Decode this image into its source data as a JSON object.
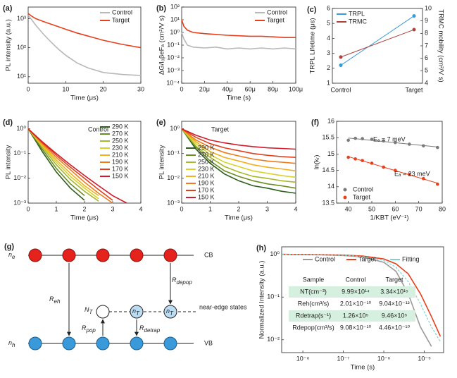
{
  "chart_data": [
    {
      "panel": "(a)",
      "type": "line",
      "xlabel": "Time (μs)",
      "ylabel": "PL intensity (a.u.)",
      "yscale": "log",
      "legend": "upper right",
      "xlim": [
        0,
        30
      ],
      "xticks": [
        0,
        10,
        20,
        30
      ],
      "ylim": [
        6,
        2500
      ],
      "yticks": [
        {
          "value": 10,
          "label": "10¹"
        },
        {
          "value": 100,
          "label": "10²"
        },
        {
          "value": 1000,
          "label": "10³"
        }
      ],
      "x": [
        0,
        1,
        2,
        4,
        6,
        8,
        10,
        13,
        16,
        20,
        25,
        30
      ],
      "series": [
        {
          "name": "Control",
          "color": "#b8b8b8",
          "values": [
            1300,
            900,
            600,
            300,
            160,
            90,
            55,
            30,
            20,
            14,
            12,
            11
          ]
        },
        {
          "name": "Target",
          "color": "#e8401c",
          "values": [
            1500,
            1200,
            1000,
            800,
            650,
            530,
            430,
            320,
            250,
            180,
            130,
            100
          ]
        }
      ]
    },
    {
      "panel": "(b)",
      "type": "line",
      "xlabel": "Time (s)",
      "ylabel": "ΔG/I₀βeFₐ (cm²/V s)",
      "yscale": "log",
      "legend": "upper right",
      "xlim": [
        0,
        0.0001
      ],
      "xticks": [
        0,
        {
          "value": 2e-05,
          "label": "20μ"
        },
        {
          "value": 4e-05,
          "label": "40μ"
        },
        {
          "value": 6e-05,
          "label": "60μ"
        },
        {
          "value": 8e-05,
          "label": "80μ"
        },
        {
          "value": 0.0001,
          "label": "100μ"
        }
      ],
      "ylim": [
        0.0001,
        100
      ],
      "yticks": [
        {
          "value": 0.0001,
          "label": "10⁻⁴"
        },
        {
          "value": 0.001,
          "label": "10⁻³"
        },
        {
          "value": 0.01,
          "label": "10⁻²"
        },
        {
          "value": 0.1,
          "label": "10⁻¹"
        },
        {
          "value": 1,
          "label": "10⁰"
        },
        {
          "value": 10,
          "label": "10¹"
        },
        {
          "value": 100,
          "label": "10²"
        }
      ],
      "x": [
        0,
        2e-06,
        5e-06,
        1e-05,
        2e-05,
        3e-05,
        4e-05,
        5e-05,
        6e-05,
        7e-05,
        8e-05,
        9e-05,
        0.0001
      ],
      "series": [
        {
          "name": "Control",
          "color": "#b8b8b8",
          "values": [
            1,
            0.3,
            0.1,
            0.07,
            0.06,
            0.07,
            0.05,
            0.06,
            0.05,
            0.06,
            0.05,
            0.06,
            0.05
          ]
        },
        {
          "name": "Target",
          "color": "#e8401c",
          "values": [
            10,
            3,
            1.5,
            1,
            0.8,
            0.7,
            0.6,
            0.55,
            0.5,
            0.5,
            0.45,
            0.4,
            0.4
          ]
        }
      ]
    },
    {
      "panel": "(c)",
      "type": "dual",
      "ylabel": "TRPL Lifetime (μs)",
      "y2label": "TRMC mobility (cm²/V s)",
      "legend": "upper left",
      "categories": [
        "Control",
        "Target"
      ],
      "ylim": [
        1,
        6
      ],
      "yticks": [
        1,
        2,
        3,
        4,
        5,
        6
      ],
      "y2lim": [
        4,
        10
      ],
      "y2ticks": [
        4,
        5,
        6,
        7,
        8,
        9,
        10
      ],
      "series": [
        {
          "name": "TRPL",
          "color": "#3a9ad9",
          "values": [
            2.2,
            5.5
          ]
        },
        {
          "name": "TRMC",
          "color": "#b0413e",
          "axis": "y2",
          "values": [
            6.1,
            8.3
          ]
        }
      ]
    },
    {
      "panel": "(d)",
      "type": "line",
      "xlabel": "Time (μs)",
      "ylabel": "PL intensity",
      "yscale": "log",
      "legend": "upper right",
      "annotations": [
        "Control"
      ],
      "xlim": [
        0,
        4
      ],
      "xticks": [
        0,
        1,
        2,
        3,
        4
      ],
      "ylim": [
        0.001,
        2
      ],
      "yticks": [
        {
          "value": 0.001,
          "label": "10⁻³"
        },
        {
          "value": 0.01,
          "label": "10⁻²"
        },
        {
          "value": 0.1,
          "label": "10⁻¹"
        },
        {
          "value": 1,
          "label": "10⁰"
        }
      ],
      "x": [
        0,
        0.5,
        1,
        1.5,
        2,
        2.5,
        3,
        3.5,
        4
      ],
      "series": [
        {
          "name": "290 K",
          "color": "#2e5e1e",
          "values": [
            1,
            0.12,
            0.018,
            0.004,
            0.0013,
            null,
            null,
            null,
            null
          ]
        },
        {
          "name": "270 K",
          "color": "#6b8e23",
          "values": [
            1,
            0.15,
            0.025,
            0.006,
            0.002,
            null,
            null,
            null,
            null
          ]
        },
        {
          "name": "250 K",
          "color": "#a7b82b",
          "values": [
            1,
            0.18,
            0.035,
            0.009,
            0.003,
            0.0012,
            null,
            null,
            null
          ]
        },
        {
          "name": "230 K",
          "color": "#d9d22a",
          "values": [
            1,
            0.2,
            0.045,
            0.012,
            0.004,
            0.0015,
            null,
            null,
            null
          ]
        },
        {
          "name": "210 K",
          "color": "#f2b01e",
          "values": [
            1,
            0.22,
            0.055,
            0.016,
            0.005,
            0.002,
            null,
            null,
            null
          ]
        },
        {
          "name": "190 K",
          "color": "#ee7c1a",
          "values": [
            1,
            0.25,
            0.07,
            0.022,
            0.007,
            0.0025,
            0.001,
            null,
            null
          ]
        },
        {
          "name": "170 K",
          "color": "#e0401e",
          "values": [
            1,
            0.28,
            0.085,
            0.028,
            0.01,
            0.0035,
            0.0013,
            null,
            null
          ]
        },
        {
          "name": "150 K",
          "color": "#d01c2a",
          "values": [
            1,
            0.3,
            0.1,
            0.035,
            0.013,
            0.005,
            0.002,
            0.001,
            null
          ]
        }
      ]
    },
    {
      "panel": "(e)",
      "type": "line",
      "xlabel": "Time (μs)",
      "ylabel": "PL intensity",
      "yscale": "log",
      "legend": "lower left",
      "annotations": [
        "Target"
      ],
      "xlim": [
        0,
        4
      ],
      "xticks": [
        0,
        1,
        2,
        3,
        4
      ],
      "ylim": [
        0.001,
        2
      ],
      "yticks": [
        {
          "value": 0.001,
          "label": "10⁻³"
        },
        {
          "value": 0.01,
          "label": "10⁻²"
        },
        {
          "value": 0.1,
          "label": "10⁻¹"
        },
        {
          "value": 1,
          "label": "10⁰"
        }
      ],
      "x": [
        0,
        0.5,
        1,
        1.5,
        2,
        2.5,
        3,
        3.5,
        4
      ],
      "series": [
        {
          "name": "290 K",
          "color": "#2e5e1e",
          "values": [
            1,
            0.15,
            0.04,
            0.015,
            0.008,
            0.005,
            0.004,
            0.003,
            0.0025
          ]
        },
        {
          "name": "270 K",
          "color": "#6b8e23",
          "values": [
            1,
            0.18,
            0.05,
            0.02,
            0.012,
            0.008,
            0.006,
            0.005,
            0.004
          ]
        },
        {
          "name": "250 K",
          "color": "#a7b82b",
          "values": [
            1,
            0.2,
            0.07,
            0.03,
            0.018,
            0.012,
            0.01,
            0.008,
            0.007
          ]
        },
        {
          "name": "230 K",
          "color": "#d9d22a",
          "values": [
            1,
            0.25,
            0.09,
            0.045,
            0.03,
            0.02,
            0.016,
            0.013,
            0.011
          ]
        },
        {
          "name": "210 K",
          "color": "#f2b01e",
          "values": [
            1,
            0.3,
            0.12,
            0.07,
            0.05,
            0.035,
            0.028,
            0.024,
            0.02
          ]
        },
        {
          "name": "190 K",
          "color": "#ee7c1a",
          "values": [
            1,
            0.35,
            0.18,
            0.11,
            0.08,
            0.06,
            0.05,
            0.045,
            0.04
          ]
        },
        {
          "name": "170 K",
          "color": "#e0401e",
          "values": [
            1,
            0.45,
            0.25,
            0.17,
            0.13,
            0.1,
            0.085,
            0.075,
            0.07
          ]
        },
        {
          "name": "150 K",
          "color": "#d01c2a",
          "values": [
            1,
            0.55,
            0.35,
            0.27,
            0.22,
            0.19,
            0.17,
            0.16,
            0.15
          ]
        }
      ]
    },
    {
      "panel": "(f)",
      "type": "scatter",
      "xlabel": "1/KBT (eV⁻¹)",
      "ylabel": "ln(kᵣ)",
      "legend": "lower left",
      "annotations": [
        "Eₐ = 7 meV",
        "Eₐ = 23 meV"
      ],
      "xlim": [
        35,
        80
      ],
      "xticks": [
        40,
        50,
        60,
        70,
        80
      ],
      "ylim": [
        13.5,
        16
      ],
      "yticks": [
        13.5,
        14,
        14.5,
        15,
        15.5,
        16
      ],
      "x": [
        40,
        43,
        46,
        50,
        55,
        60,
        66,
        72,
        78
      ],
      "series": [
        {
          "name": "Control",
          "color": "#7a7a7a",
          "values": [
            15.42,
            15.48,
            15.47,
            15.45,
            15.4,
            15.35,
            15.3,
            15.25,
            15.2
          ]
        },
        {
          "name": "Target",
          "color": "#e8401c",
          "values": [
            14.9,
            14.85,
            14.8,
            14.72,
            14.6,
            14.5,
            14.38,
            14.25,
            14.08
          ]
        }
      ]
    },
    {
      "panel": "(h)",
      "type": "line",
      "xlabel": "Time (s)",
      "ylabel": "Normalized Intensity (a.u.)",
      "xscale": "log",
      "yscale": "log",
      "legend": "top",
      "xlim": [
        3e-09,
        3e-05
      ],
      "xticks": [
        {
          "value": 1e-08,
          "label": "10⁻⁸"
        },
        {
          "value": 1e-07,
          "label": "10⁻⁷"
        },
        {
          "value": 1e-06,
          "label": "10⁻⁶"
        },
        {
          "value": 1e-05,
          "label": "10⁻⁵"
        }
      ],
      "ylim": [
        0.005,
        1.5
      ],
      "yticks": [
        {
          "value": 0.01,
          "label": "10⁻²"
        },
        {
          "value": 0.1,
          "label": "10⁻¹"
        },
        {
          "value": 1,
          "label": "10⁰"
        }
      ],
      "x": [
        3e-09,
        1e-08,
        3e-08,
        1e-07,
        3e-07,
        1e-06,
        2e-06,
        4e-06,
        8e-06,
        1.5e-05,
        2.5e-05
      ],
      "series": [
        {
          "name": "Control",
          "color": "#9a9a9a",
          "values": [
            1,
            0.99,
            0.97,
            0.94,
            0.87,
            0.65,
            0.4,
            0.12,
            0.02,
            0.007,
            null
          ]
        },
        {
          "name": "Target",
          "color": "#e8401c",
          "values": [
            1,
            0.99,
            0.98,
            0.96,
            0.91,
            0.78,
            0.6,
            0.35,
            0.12,
            0.035,
            0.012
          ]
        },
        {
          "name": "Fitting",
          "color": "#7fd3cf",
          "values": [
            1,
            0.99,
            0.975,
            0.95,
            0.89,
            0.72,
            0.5,
            0.23,
            0.07,
            0.02,
            0.009
          ]
        }
      ],
      "table": {
        "header": [
          "Sample",
          "Control",
          "Target"
        ],
        "rows": [
          [
            "NT(cm⁻³)",
            "9.99×10¹⁴",
            "3.34×10¹⁵"
          ],
          [
            "Reh(cm³/s)",
            "2.01×10⁻¹⁰",
            "9.04×10⁻¹²"
          ],
          [
            "Rdetrap(s⁻¹)",
            "1.26×10⁵",
            "9.46×10⁵"
          ],
          [
            "Rdepop(cm³/s)",
            "9.08×10⁻¹⁰",
            "4.46×10⁻¹⁰"
          ]
        ]
      }
    }
  ],
  "diagram": {
    "panel": "(g)",
    "cb": "CB",
    "vb": "VB",
    "near_edge": "near-edge states",
    "ne": {
      "text": "n",
      "sub": "e"
    },
    "nh": {
      "text": "n",
      "sub": "h"
    },
    "reh": {
      "text": "R",
      "sub": "eh"
    },
    "rdepop": {
      "text": "R",
      "sub": "depop"
    },
    "NT": {
      "text": "N",
      "sub": "T"
    },
    "rpop": {
      "text": "R",
      "sub": "pop"
    },
    "rdetrap": {
      "text": "R",
      "sub": "detrap"
    },
    "nt1": {
      "text": "n",
      "sub": "T"
    },
    "nt2": {
      "text": "n",
      "sub": "T"
    }
  }
}
